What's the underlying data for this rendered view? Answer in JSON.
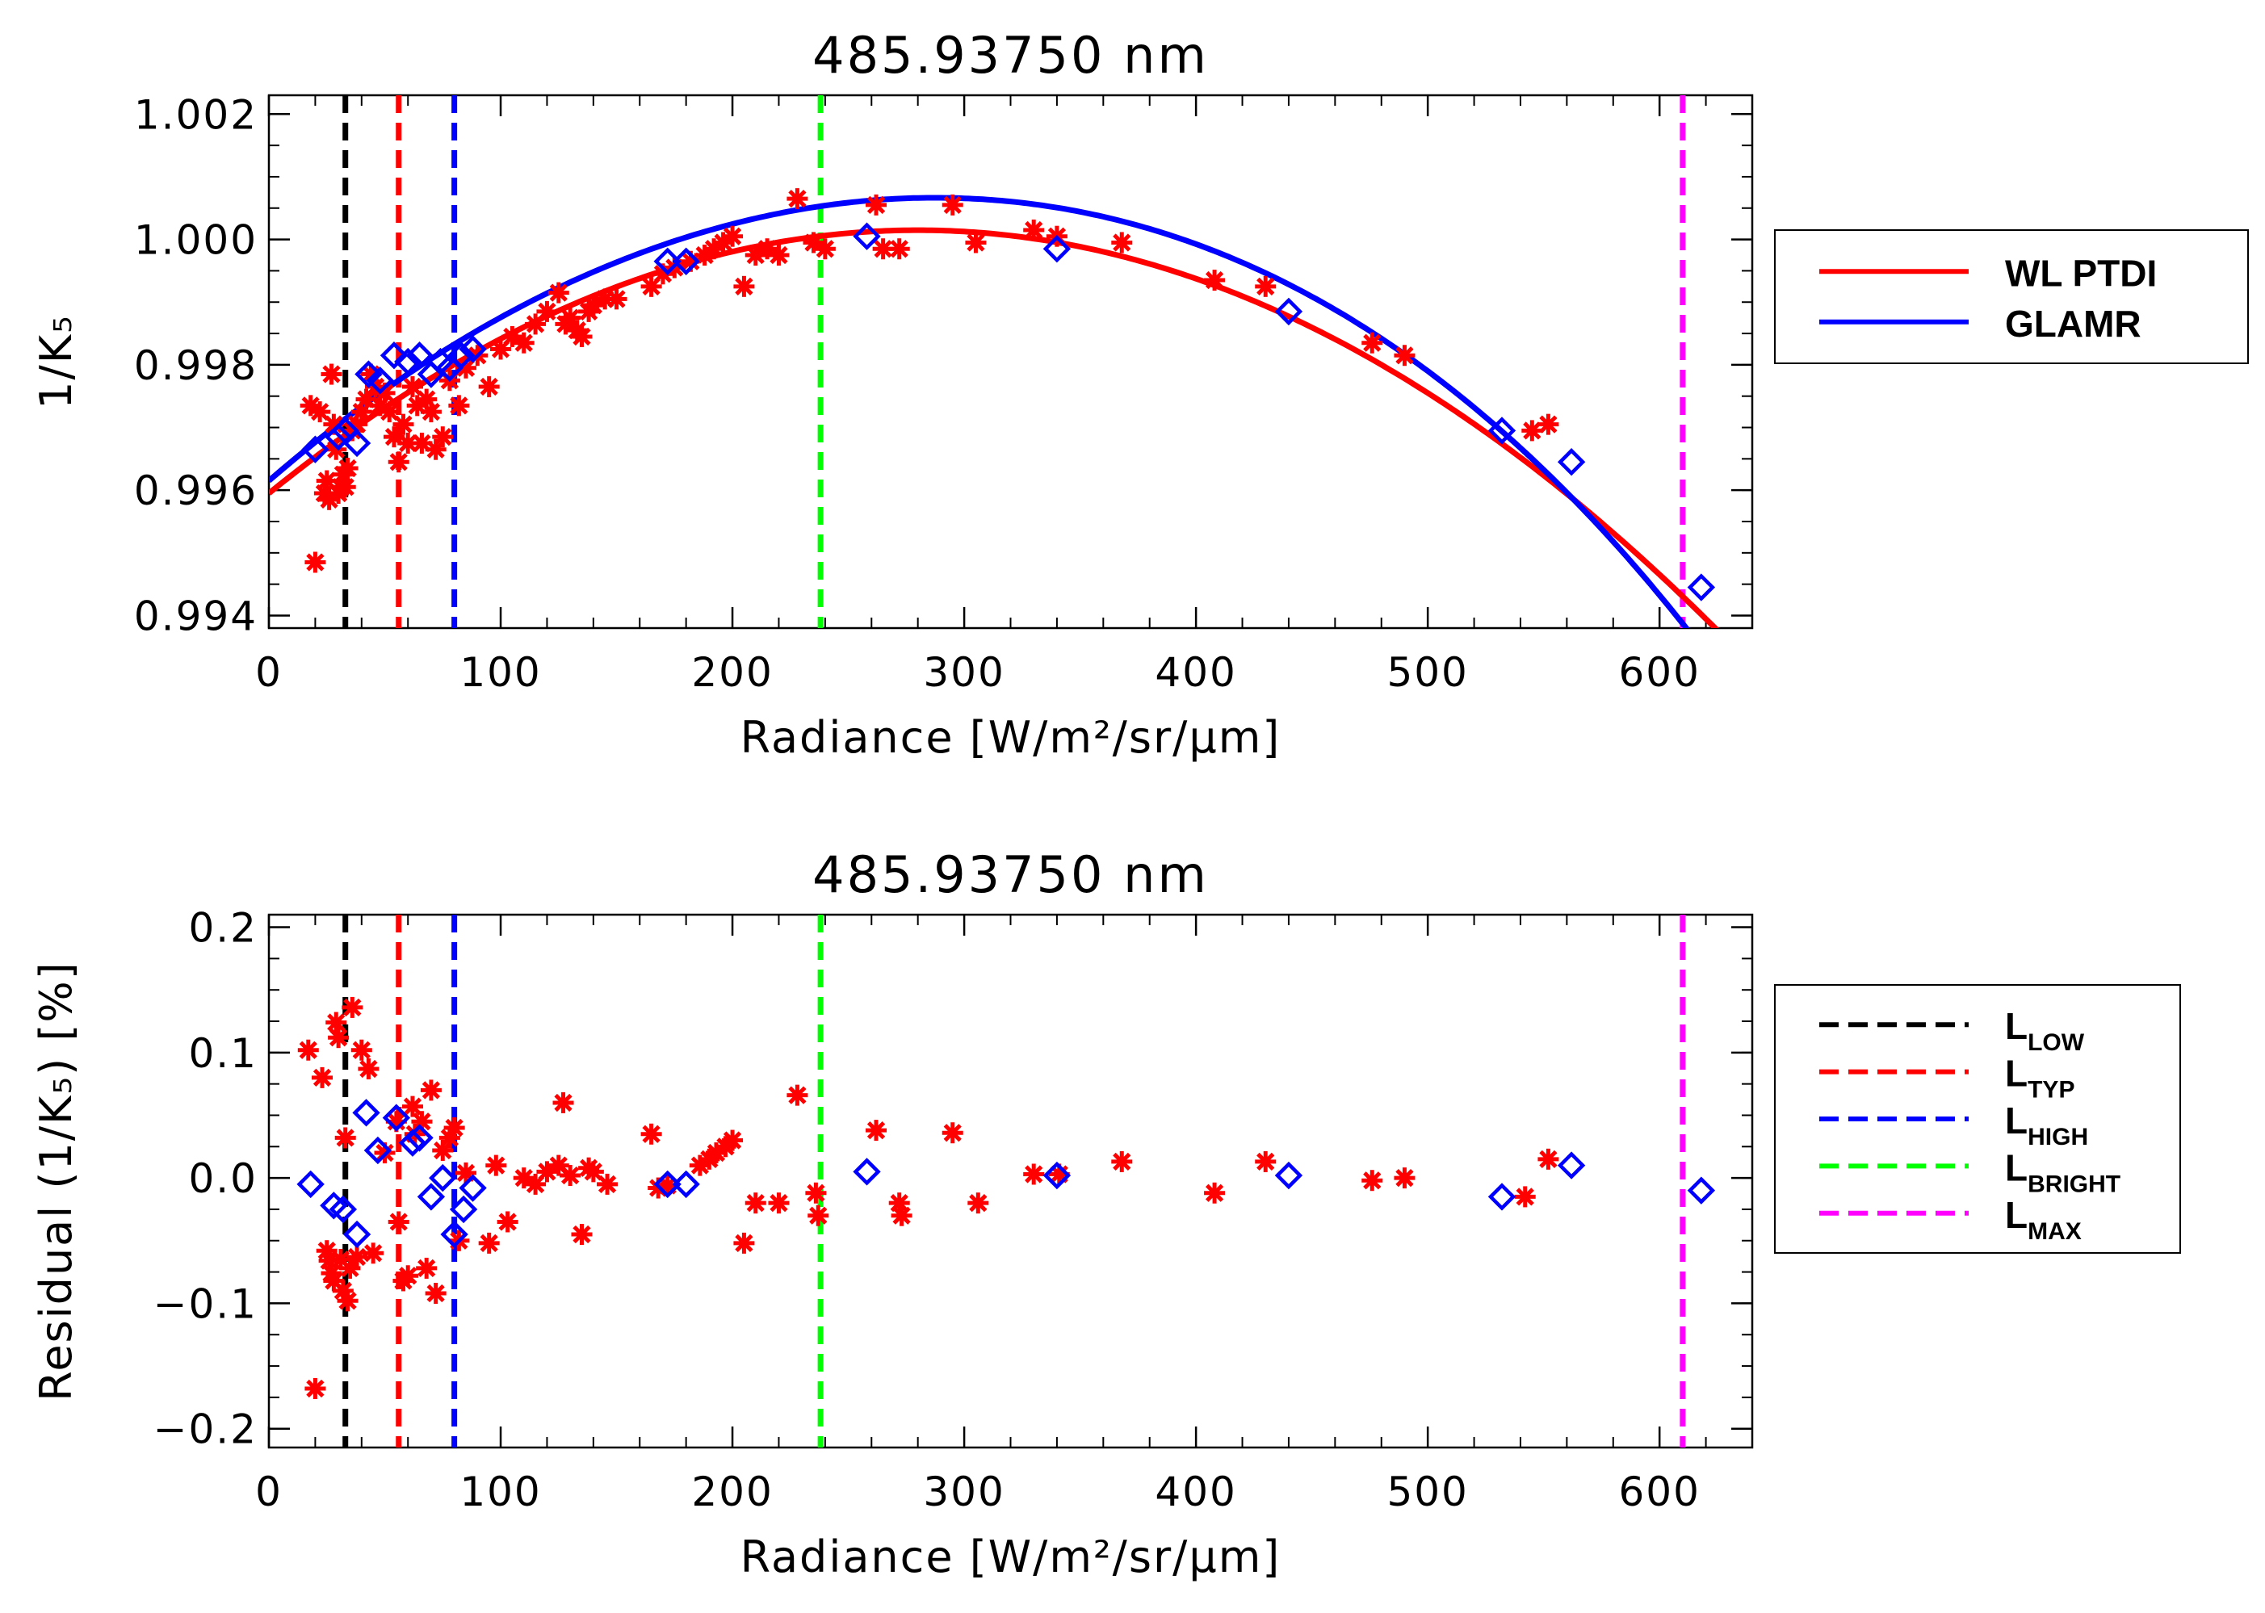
{
  "chart_data": [
    {
      "type": "scatter",
      "title": "485.93750 nm",
      "xlabel": "Radiance [W/m²/sr/μm]",
      "ylabel": "1/K₅",
      "xlim": [
        0,
        640
      ],
      "ylim": [
        0.9938,
        1.0023
      ],
      "xticks": [
        0,
        100,
        200,
        300,
        400,
        500,
        600
      ],
      "xtick_labels": [
        "0",
        "100",
        "200",
        "300",
        "400",
        "500",
        "600"
      ],
      "yticks": [
        0.994,
        0.996,
        0.998,
        1.0,
        1.002
      ],
      "ytick_labels": [
        "0.994",
        "0.996",
        "0.998",
        "1.000",
        "1.002"
      ],
      "legend": {
        "position": "right",
        "entries": [
          {
            "label": "WL PTDI",
            "color": "#ff0000"
          },
          {
            "label": "GLAMR",
            "color": "#0000ff"
          }
        ]
      },
      "reference_lines": [
        {
          "name": "L_LOW",
          "x": 33,
          "color": "#000000"
        },
        {
          "name": "L_TYP",
          "x": 56,
          "color": "#ff0000"
        },
        {
          "name": "L_HIGH",
          "x": 80,
          "color": "#0000ff"
        },
        {
          "name": "L_BRIGHT",
          "x": 238,
          "color": "#00ff00"
        },
        {
          "name": "L_MAX",
          "x": 610,
          "color": "#ff00ff"
        }
      ],
      "series": [
        {
          "name": "WL PTDI fit",
          "kind": "line",
          "color": "#ff0000",
          "coef": [
            0.99595,
            3e-05,
            -5.36e-08
          ]
        },
        {
          "name": "GLAMR fit",
          "kind": "line",
          "color": "#0000ff",
          "coef": [
            0.99615,
            3.2e-05,
            -6.2e-08,
            3e-11,
            -4e-14
          ]
        },
        {
          "name": "WL PTDI data",
          "kind": "scatter",
          "marker": "asterisk",
          "color": "#ff0000",
          "x": [
            18,
            20,
            22,
            24,
            25,
            26,
            27,
            28,
            29,
            30,
            31,
            32,
            33,
            34,
            36,
            38,
            40,
            42,
            44,
            46,
            48,
            50,
            52,
            54,
            56,
            58,
            60,
            62,
            64,
            66,
            68,
            70,
            72,
            75,
            78,
            82,
            85,
            90,
            95,
            100,
            105,
            110,
            115,
            120,
            125,
            128,
            130,
            133,
            135,
            138,
            140,
            145,
            150,
            165,
            170,
            175,
            182,
            188,
            192,
            196,
            200,
            205,
            210,
            215,
            220,
            228,
            235,
            240,
            262,
            265,
            272,
            295,
            305,
            330,
            340,
            368,
            408,
            430,
            476,
            490,
            545,
            552
          ],
          "y": [
            0.99735,
            0.99485,
            0.99725,
            0.99595,
            0.99615,
            0.99585,
            0.99785,
            0.99705,
            0.99665,
            0.99595,
            0.99605,
            0.99625,
            0.99605,
            0.99635,
            0.99695,
            0.99705,
            0.99725,
            0.99745,
            0.99785,
            0.99765,
            0.99735,
            0.99755,
            0.99725,
            0.99685,
            0.99645,
            0.99705,
            0.99675,
            0.99765,
            0.99735,
            0.99675,
            0.99745,
            0.99725,
            0.99665,
            0.99685,
            0.99775,
            0.99735,
            0.99795,
            0.99815,
            0.99765,
            0.99825,
            0.99845,
            0.99835,
            0.99865,
            0.99885,
            0.99915,
            0.99865,
            0.99875,
            0.99855,
            0.99845,
            0.99885,
            0.99895,
            0.99905,
            0.99905,
            0.99925,
            0.99945,
            0.99955,
            0.99965,
            0.99975,
            0.99985,
            0.99995,
            1.00005,
            0.99925,
            0.99975,
            0.99985,
            0.99975,
            1.00065,
            0.99995,
            0.99985,
            1.00055,
            0.99985,
            0.99985,
            1.00055,
            0.99995,
            1.00015,
            1.00005,
            0.99995,
            0.99935,
            0.99925,
            0.99835,
            0.99815,
            0.99695,
            0.99705
          ]
        },
        {
          "name": "GLAMR data",
          "kind": "scatter",
          "marker": "diamond",
          "color": "#0000ff",
          "x": [
            20,
            30,
            33,
            38,
            43,
            48,
            54,
            60,
            65,
            70,
            74,
            78,
            83,
            88,
            172,
            180,
            258,
            340,
            440,
            532,
            562,
            618
          ],
          "y": [
            0.99665,
            0.99685,
            0.99695,
            0.99675,
            0.99785,
            0.99775,
            0.99815,
            0.99805,
            0.99815,
            0.99785,
            0.99805,
            0.99795,
            0.99815,
            0.99825,
            0.99965,
            0.99965,
            1.00005,
            0.99985,
            0.99885,
            0.99695,
            0.99645,
            0.99445
          ]
        }
      ]
    },
    {
      "type": "scatter",
      "title": "485.93750 nm",
      "xlabel": "Radiance [W/m²/sr/μm]",
      "ylabel": "Residual (1/K₅) [%]",
      "xlim": [
        0,
        640
      ],
      "ylim": [
        -0.215,
        0.21
      ],
      "xticks": [
        0,
        100,
        200,
        300,
        400,
        500,
        600
      ],
      "xtick_labels": [
        "0",
        "100",
        "200",
        "300",
        "400",
        "500",
        "600"
      ],
      "yticks": [
        -0.2,
        -0.1,
        0.0,
        0.1,
        0.2
      ],
      "ytick_labels": [
        "−0.2",
        "−0.1",
        "0.0",
        "0.1",
        "0.2"
      ],
      "legend": {
        "position": "right",
        "entries": [
          {
            "label": "L",
            "sub": "LOW",
            "color": "#000000"
          },
          {
            "label": "L",
            "sub": "TYP",
            "color": "#ff0000"
          },
          {
            "label": "L",
            "sub": "HIGH",
            "color": "#0000ff"
          },
          {
            "label": "L",
            "sub": "BRIGHT",
            "color": "#00ff00"
          },
          {
            "label": "L",
            "sub": "MAX",
            "color": "#ff00ff"
          }
        ]
      },
      "reference_lines": [
        {
          "name": "L_LOW",
          "x": 33,
          "color": "#000000"
        },
        {
          "name": "L_TYP",
          "x": 56,
          "color": "#ff0000"
        },
        {
          "name": "L_HIGH",
          "x": 80,
          "color": "#0000ff"
        },
        {
          "name": "L_BRIGHT",
          "x": 238,
          "color": "#00ff00"
        },
        {
          "name": "L_MAX",
          "x": 610,
          "color": "#ff00ff"
        }
      ],
      "series": [
        {
          "name": "WL PTDI residual",
          "kind": "scatter",
          "marker": "asterisk",
          "color": "#ff0000",
          "x": [
            17,
            20,
            23,
            25,
            26,
            27,
            28,
            29,
            30,
            31,
            32,
            33,
            34,
            35,
            36,
            38,
            40,
            43,
            45,
            50,
            55,
            56,
            58,
            60,
            62,
            63,
            66,
            68,
            70,
            72,
            75,
            78,
            80,
            82,
            85,
            95,
            98,
            103,
            110,
            115,
            120,
            125,
            127,
            130,
            135,
            138,
            140,
            146,
            165,
            168,
            172,
            186,
            190,
            193,
            197,
            200,
            205,
            210,
            220,
            228,
            236,
            237,
            262,
            272,
            273,
            295,
            306,
            330,
            341,
            368,
            408,
            430,
            476,
            490,
            542,
            552
          ],
          "y": [
            0.102,
            -0.168,
            0.08,
            -0.058,
            -0.066,
            -0.076,
            -0.082,
            0.124,
            0.112,
            -0.065,
            -0.09,
            0.032,
            -0.098,
            -0.072,
            0.136,
            -0.063,
            0.102,
            0.087,
            -0.06,
            0.02,
            0.045,
            -0.035,
            -0.082,
            -0.078,
            0.057,
            0.035,
            0.045,
            -0.072,
            0.07,
            -0.092,
            0.022,
            0.032,
            0.04,
            -0.05,
            0.004,
            -0.052,
            0.01,
            -0.035,
            0.0,
            -0.005,
            0.005,
            0.01,
            0.06,
            0.002,
            -0.045,
            0.008,
            0.005,
            -0.005,
            0.035,
            -0.008,
            -0.006,
            0.01,
            0.015,
            0.02,
            0.025,
            0.03,
            -0.052,
            -0.02,
            -0.02,
            0.066,
            -0.012,
            -0.03,
            0.038,
            -0.02,
            -0.03,
            0.036,
            -0.02,
            0.003,
            0.003,
            0.013,
            -0.012,
            0.013,
            -0.002,
            0.0,
            -0.015,
            0.015
          ]
        },
        {
          "name": "GLAMR residual",
          "kind": "scatter",
          "marker": "diamond",
          "color": "#0000ff",
          "x": [
            18,
            28,
            32,
            38,
            42,
            47,
            55,
            62,
            65,
            70,
            75,
            80,
            84,
            88,
            172,
            180,
            258,
            340,
            440,
            532,
            562,
            618
          ],
          "y": [
            -0.005,
            -0.022,
            -0.025,
            -0.045,
            0.052,
            0.022,
            0.048,
            0.028,
            0.032,
            -0.015,
            0.0,
            -0.045,
            -0.025,
            -0.008,
            -0.005,
            -0.005,
            0.005,
            0.002,
            0.002,
            -0.015,
            0.01,
            -0.01
          ]
        }
      ]
    }
  ]
}
